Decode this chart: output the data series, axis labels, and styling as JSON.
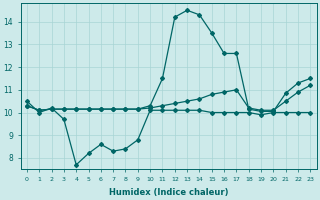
{
  "xlabel": "Humidex (Indice chaleur)",
  "xlim": [
    -0.5,
    23.5
  ],
  "ylim": [
    7.5,
    14.8
  ],
  "yticks": [
    8,
    9,
    10,
    11,
    12,
    13,
    14
  ],
  "xticks": [
    0,
    1,
    2,
    3,
    4,
    5,
    6,
    7,
    8,
    9,
    10,
    11,
    12,
    13,
    14,
    15,
    16,
    17,
    18,
    19,
    20,
    21,
    22,
    23
  ],
  "bg_color": "#cdeaea",
  "line_color": "#006666",
  "grid_color": "#a8d5d5",
  "line1_x": [
    0,
    1,
    2,
    3,
    4,
    5,
    6,
    7,
    8,
    9,
    10,
    11,
    12,
    13,
    14,
    15,
    16,
    17,
    18,
    19,
    20,
    21,
    22,
    23
  ],
  "line1_y": [
    10.5,
    10.0,
    10.2,
    9.7,
    7.7,
    8.2,
    8.6,
    8.3,
    8.4,
    8.8,
    10.1,
    10.1,
    10.1,
    10.1,
    10.1,
    10.0,
    10.0,
    10.0,
    10.0,
    9.9,
    10.0,
    10.0,
    10.0,
    10.0
  ],
  "line2_x": [
    0,
    1,
    2,
    3,
    4,
    5,
    6,
    7,
    8,
    9,
    10,
    11,
    12,
    13,
    14,
    15,
    16,
    17,
    18,
    19,
    20,
    21,
    22,
    23
  ],
  "line2_y": [
    10.3,
    10.1,
    10.15,
    10.15,
    10.15,
    10.15,
    10.15,
    10.15,
    10.15,
    10.15,
    10.2,
    10.3,
    10.4,
    10.5,
    10.6,
    10.8,
    10.9,
    11.0,
    10.2,
    10.1,
    10.1,
    10.5,
    10.9,
    11.2
  ],
  "line3_x": [
    0,
    1,
    2,
    3,
    4,
    5,
    6,
    7,
    8,
    9,
    10,
    11,
    12,
    13,
    14,
    15,
    16,
    17,
    18,
    19,
    20,
    21,
    22,
    23
  ],
  "line3_y": [
    10.3,
    10.1,
    10.15,
    10.15,
    10.15,
    10.15,
    10.15,
    10.15,
    10.15,
    10.15,
    10.3,
    11.5,
    14.2,
    14.5,
    14.3,
    13.5,
    12.6,
    12.6,
    10.15,
    10.05,
    10.05,
    10.85,
    11.3,
    11.5
  ]
}
